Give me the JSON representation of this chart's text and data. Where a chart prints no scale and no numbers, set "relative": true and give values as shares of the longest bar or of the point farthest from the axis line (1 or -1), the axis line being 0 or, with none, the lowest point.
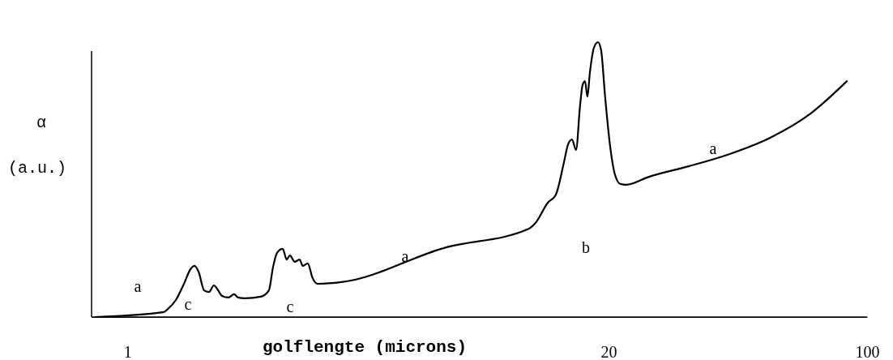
{
  "chart_data": {
    "type": "line",
    "relative": true,
    "xlabel": "golflengte (microns)",
    "ylabel": "α\n(a.u.)",
    "log": "x",
    "xlim": [
      0.8,
      100
    ],
    "xticks": [
      1,
      20,
      100
    ],
    "color": "#000000",
    "x": [
      0.82,
      1.254,
      1.286,
      1.352,
      1.422,
      1.481,
      1.518,
      1.557,
      1.613,
      1.663,
      1.713,
      1.748,
      1.802,
      1.876,
      1.943,
      1.993,
      2.075,
      2.295,
      2.413,
      2.475,
      2.537,
      2.629,
      2.696,
      2.75,
      2.835,
      2.921,
      2.981,
      3.073,
      3.167,
      3.264,
      3.795,
      7.3,
      12.08,
      12.7,
      13.7,
      14.4,
      15.15,
      15.54,
      15.93,
      16.33,
      16.75,
      17.01,
      17.27,
      17.53,
      17.8,
      18.25,
      18.72,
      19.09,
      19.58,
      20.18,
      20.8,
      21.54,
      22.32,
      25.69,
      33.04,
      42.5,
      54.66,
      70.31,
      88.2
    ],
    "values": [
      0,
      0.018,
      0.029,
      0.062,
      0.121,
      0.174,
      0.186,
      0.165,
      0.097,
      0.091,
      0.115,
      0.103,
      0.077,
      0.071,
      0.083,
      0.071,
      0.068,
      0.074,
      0.097,
      0.18,
      0.233,
      0.248,
      0.209,
      0.224,
      0.201,
      0.209,
      0.186,
      0.195,
      0.142,
      0.121,
      0.127,
      0.254,
      0.319,
      0.343,
      0.416,
      0.445,
      0.563,
      0.628,
      0.646,
      0.608,
      0.77,
      0.844,
      0.858,
      0.802,
      0.888,
      0.979,
      1.0,
      0.971,
      0.799,
      0.625,
      0.519,
      0.484,
      0.481,
      0.51,
      0.549,
      0.593,
      0.652,
      0.74,
      0.858
    ],
    "annotations": [
      "a",
      "c",
      "c",
      "a",
      "b",
      "a"
    ]
  }
}
